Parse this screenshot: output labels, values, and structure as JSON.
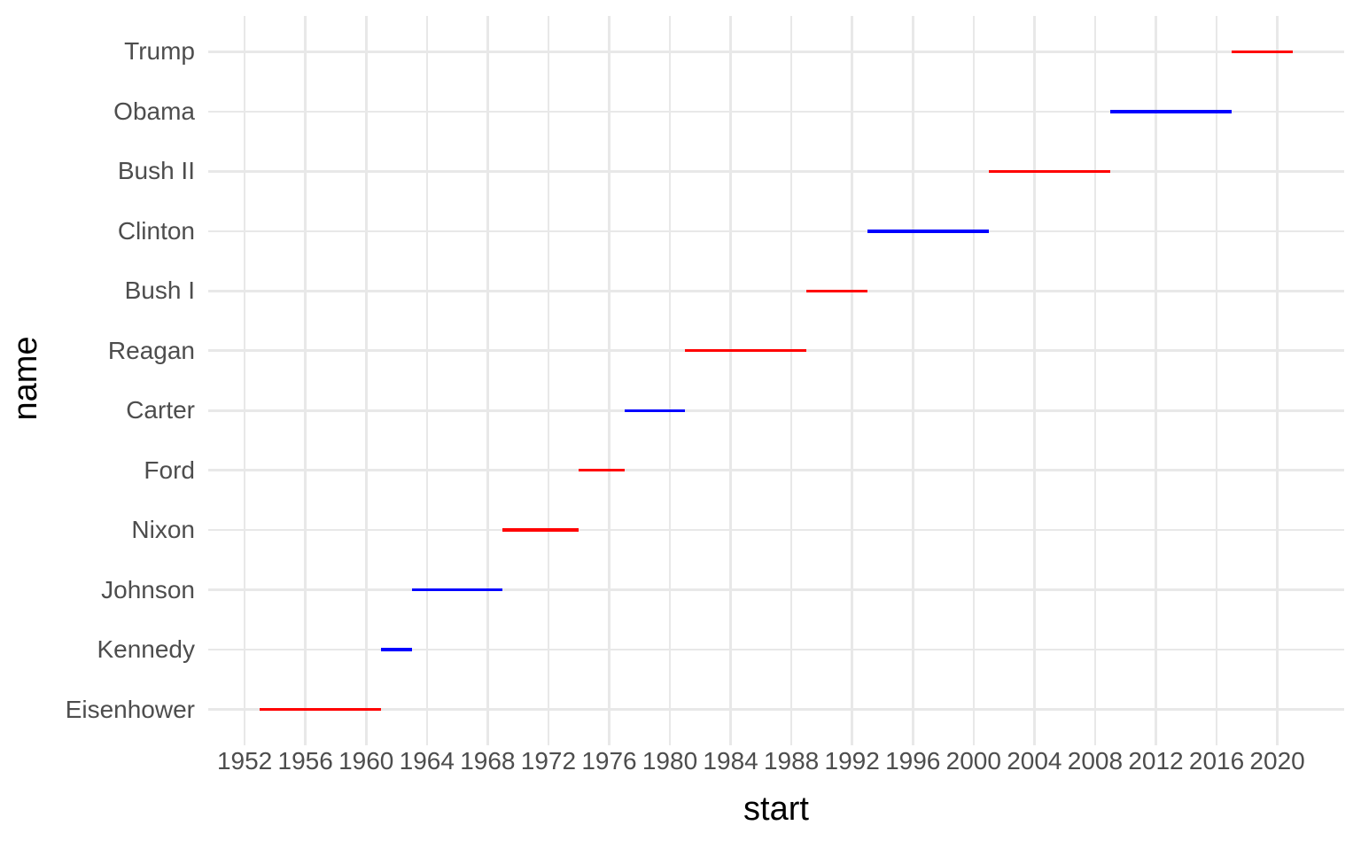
{
  "chart_data": {
    "type": "bar",
    "variant": "gantt-segment-timeline",
    "title": "",
    "xlabel": "start",
    "ylabel": "name",
    "x_ticks": [
      1952,
      1956,
      1960,
      1964,
      1968,
      1972,
      1976,
      1980,
      1984,
      1988,
      1992,
      1996,
      2000,
      2004,
      2008,
      2012,
      2016,
      2020
    ],
    "xlim": [
      1949.6,
      2024.4
    ],
    "grid": true,
    "legend": "none",
    "colors": {
      "background": "#FFFFFF",
      "gridline": "#E8E8E8",
      "axis_text": "#4D4D4D",
      "axis_title": "#000000",
      "republican": "#FF0000",
      "democratic": "#0000FF"
    },
    "categories_top_to_bottom": [
      "Trump",
      "Obama",
      "Bush II",
      "Clinton",
      "Bush I",
      "Reagan",
      "Carter",
      "Ford",
      "Nixon",
      "Johnson",
      "Kennedy",
      "Eisenhower"
    ],
    "segments": [
      {
        "name": "Trump",
        "start": 2017,
        "end": 2021,
        "party": "republican"
      },
      {
        "name": "Obama",
        "start": 2009,
        "end": 2017,
        "party": "democratic"
      },
      {
        "name": "Bush II",
        "start": 2001,
        "end": 2009,
        "party": "republican"
      },
      {
        "name": "Clinton",
        "start": 1993,
        "end": 2001,
        "party": "democratic"
      },
      {
        "name": "Bush I",
        "start": 1989,
        "end": 1993,
        "party": "republican"
      },
      {
        "name": "Reagan",
        "start": 1981,
        "end": 1989,
        "party": "republican"
      },
      {
        "name": "Carter",
        "start": 1977,
        "end": 1981,
        "party": "democratic"
      },
      {
        "name": "Ford",
        "start": 1974,
        "end": 1977,
        "party": "republican"
      },
      {
        "name": "Nixon",
        "start": 1969,
        "end": 1974,
        "party": "republican"
      },
      {
        "name": "Johnson",
        "start": 1963,
        "end": 1969,
        "party": "democratic"
      },
      {
        "name": "Kennedy",
        "start": 1961,
        "end": 1963,
        "party": "democratic"
      },
      {
        "name": "Eisenhower",
        "start": 1953,
        "end": 1961,
        "party": "republican"
      }
    ]
  }
}
